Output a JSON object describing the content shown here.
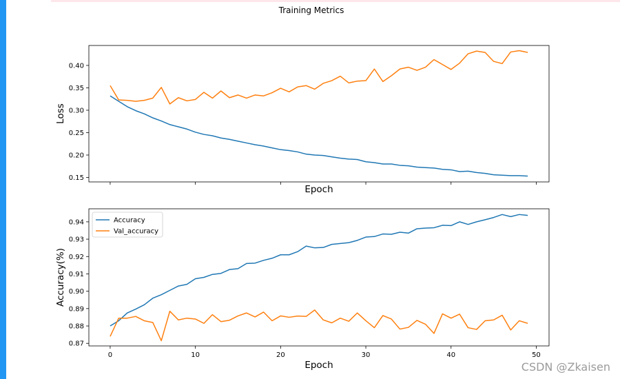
{
  "figure": {
    "title": "Training Metrics"
  },
  "watermark": "CSDN @Zkaisen",
  "chart_data": [
    {
      "type": "line",
      "xlabel": "Epoch",
      "ylabel": "Loss",
      "xlim": [
        -2.5,
        51.5
      ],
      "ylim": [
        0.14,
        0.4445
      ],
      "xticks": [
        0,
        10,
        20,
        30,
        40,
        50
      ],
      "yticks": [
        0.15,
        0.2,
        0.25,
        0.3,
        0.35,
        0.4
      ],
      "show_x_tick_labels": false,
      "legend": false,
      "grid": false,
      "series": [
        {
          "color": "#1f77b4",
          "values": [
            0.332,
            0.32,
            0.308,
            0.299,
            0.292,
            0.283,
            0.276,
            0.268,
            0.263,
            0.258,
            0.251,
            0.246,
            0.243,
            0.238,
            0.235,
            0.231,
            0.227,
            0.223,
            0.22,
            0.216,
            0.212,
            0.21,
            0.207,
            0.202,
            0.2,
            0.199,
            0.196,
            0.193,
            0.191,
            0.19,
            0.185,
            0.183,
            0.18,
            0.18,
            0.177,
            0.176,
            0.173,
            0.172,
            0.171,
            0.168,
            0.167,
            0.163,
            0.164,
            0.161,
            0.159,
            0.156,
            0.155,
            0.154,
            0.154,
            0.153
          ]
        },
        {
          "color": "#ff7f0e",
          "values": [
            0.355,
            0.323,
            0.322,
            0.32,
            0.322,
            0.327,
            0.351,
            0.314,
            0.328,
            0.321,
            0.324,
            0.34,
            0.327,
            0.343,
            0.328,
            0.334,
            0.327,
            0.334,
            0.332,
            0.339,
            0.349,
            0.341,
            0.352,
            0.355,
            0.347,
            0.36,
            0.366,
            0.376,
            0.361,
            0.365,
            0.366,
            0.392,
            0.364,
            0.377,
            0.392,
            0.396,
            0.389,
            0.396,
            0.413,
            0.402,
            0.391,
            0.405,
            0.426,
            0.432,
            0.429,
            0.409,
            0.404,
            0.43,
            0.433,
            0.429
          ]
        }
      ]
    },
    {
      "type": "line",
      "xlabel": "Epoch",
      "ylabel": "Accuracy(%)",
      "xlim": [
        -2.5,
        51.5
      ],
      "ylim": [
        0.8685,
        0.9475
      ],
      "xticks": [
        0,
        10,
        20,
        30,
        40,
        50
      ],
      "yticks": [
        0.87,
        0.88,
        0.89,
        0.9,
        0.91,
        0.92,
        0.93,
        0.94
      ],
      "show_x_tick_labels": true,
      "legend": true,
      "legend_position": "top-left",
      "grid": false,
      "series": [
        {
          "name": "Accuracy",
          "color": "#1f77b4",
          "values": [
            0.88,
            0.883,
            0.8875,
            0.8897,
            0.8922,
            0.896,
            0.898,
            0.9005,
            0.903,
            0.904,
            0.9072,
            0.908,
            0.9097,
            0.9103,
            0.9125,
            0.913,
            0.916,
            0.9162,
            0.9178,
            0.919,
            0.921,
            0.921,
            0.9228,
            0.926,
            0.925,
            0.9252,
            0.927,
            0.9275,
            0.928,
            0.9293,
            0.9312,
            0.9315,
            0.933,
            0.9328,
            0.934,
            0.9335,
            0.936,
            0.9364,
            0.9366,
            0.938,
            0.9378,
            0.94,
            0.9385,
            0.94,
            0.9412,
            0.9425,
            0.9442,
            0.943,
            0.9442,
            0.9437
          ]
        },
        {
          "name": "Val_accuracy",
          "color": "#ff7f0e",
          "values": [
            0.874,
            0.8845,
            0.8845,
            0.8855,
            0.883,
            0.882,
            0.8715,
            0.8885,
            0.8835,
            0.8845,
            0.884,
            0.8815,
            0.8865,
            0.8825,
            0.8833,
            0.8858,
            0.8875,
            0.8852,
            0.888,
            0.883,
            0.8858,
            0.885,
            0.8857,
            0.8855,
            0.8892,
            0.8835,
            0.8818,
            0.8845,
            0.8827,
            0.8875,
            0.883,
            0.879,
            0.886,
            0.884,
            0.8782,
            0.8792,
            0.8832,
            0.881,
            0.8757,
            0.887,
            0.8845,
            0.8868,
            0.879,
            0.878,
            0.883,
            0.8835,
            0.8862,
            0.8777,
            0.883,
            0.8815
          ]
        }
      ]
    }
  ]
}
